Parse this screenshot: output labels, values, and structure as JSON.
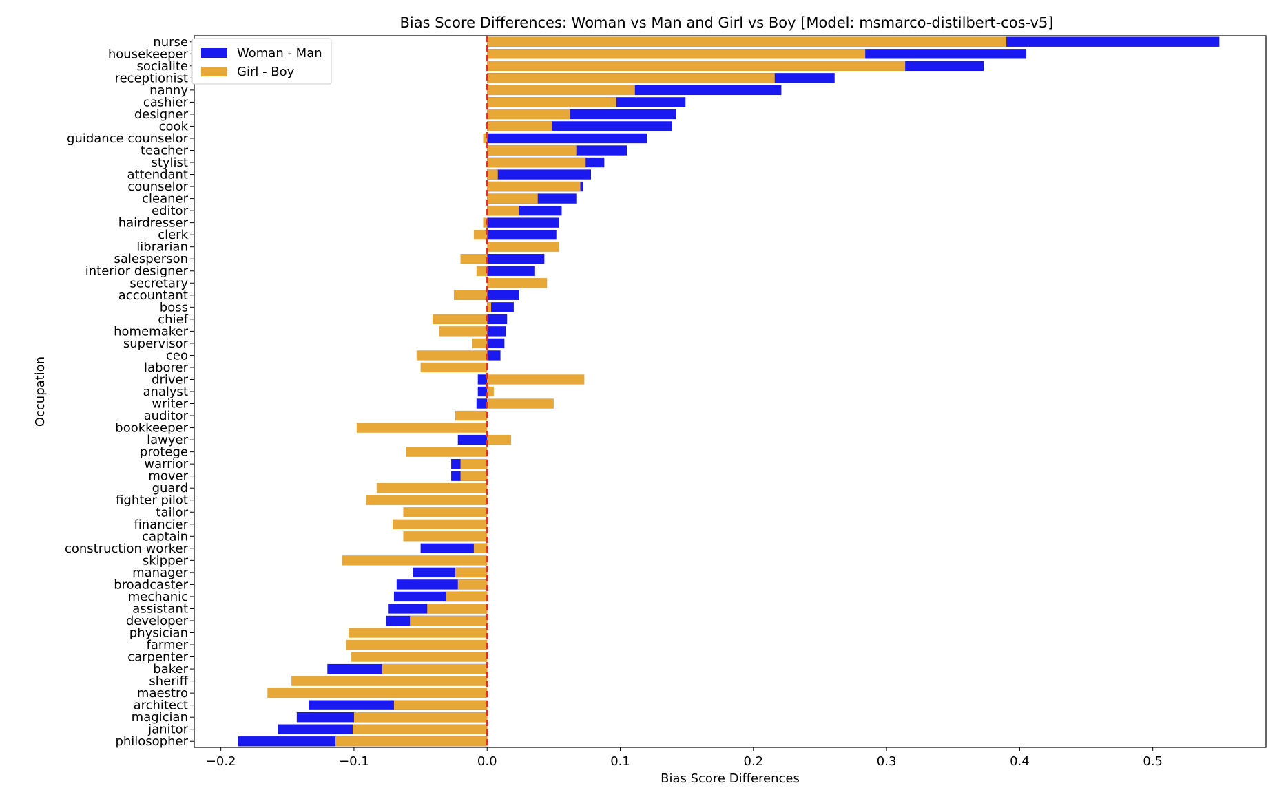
{
  "chart_data": {
    "type": "bar",
    "orientation": "horizontal",
    "title": "Bias Score Differences: Woman vs Man and Girl vs Boy [Model: msmarco-distilbert-cos-v5]",
    "xlabel": "Bias Score Differences",
    "ylabel": "Occupation",
    "xlim": [
      -0.22,
      0.585
    ],
    "xticks": [
      -0.2,
      -0.1,
      0.0,
      0.1,
      0.2,
      0.3,
      0.4,
      0.5
    ],
    "xtick_labels": [
      "−0.2",
      "−0.1",
      "0.0",
      "0.1",
      "0.2",
      "0.3",
      "0.4",
      "0.5"
    ],
    "reference_line": 0,
    "legend_position": "top-left",
    "categories": [
      "nurse",
      "housekeeper",
      "socialite",
      "receptionist",
      "nanny",
      "cashier",
      "designer",
      "cook",
      "guidance counselor",
      "teacher",
      "stylist",
      "attendant",
      "counselor",
      "cleaner",
      "editor",
      "hairdresser",
      "clerk",
      "librarian",
      "salesperson",
      "interior designer",
      "secretary",
      "accountant",
      "boss",
      "chief",
      "homemaker",
      "supervisor",
      "ceo",
      "laborer",
      "driver",
      "analyst",
      "writer",
      "auditor",
      "bookkeeper",
      "lawyer",
      "protege",
      "warrior",
      "mover",
      "guard",
      "fighter pilot",
      "tailor",
      "financier",
      "captain",
      "construction worker",
      "skipper",
      "manager",
      "broadcaster",
      "mechanic",
      "assistant",
      "developer",
      "physician",
      "farmer",
      "carpenter",
      "baker",
      "sheriff",
      "maestro",
      "architect",
      "magician",
      "janitor",
      "philosopher"
    ],
    "series": [
      {
        "name": "Woman - Man",
        "color": "#1a1af0",
        "values": [
          0.55,
          0.405,
          0.373,
          0.261,
          0.221,
          0.149,
          0.142,
          0.139,
          0.12,
          0.105,
          0.088,
          0.078,
          0.072,
          0.067,
          0.056,
          0.054,
          0.052,
          0.0,
          0.043,
          0.036,
          0.0,
          0.024,
          0.02,
          0.015,
          0.014,
          0.013,
          0.01,
          0.0,
          -0.007,
          -0.007,
          -0.008,
          0.0,
          0.0,
          -0.022,
          0.0,
          -0.027,
          -0.027,
          0.0,
          0.0,
          0.0,
          0.0,
          0.0,
          -0.05,
          0.0,
          -0.056,
          -0.068,
          -0.07,
          -0.074,
          -0.076,
          0.0,
          0.0,
          0.0,
          -0.12,
          0.0,
          0.0,
          -0.134,
          -0.143,
          -0.157,
          -0.187
        ]
      },
      {
        "name": "Girl - Boy",
        "color": "#e8a838",
        "values": [
          0.39,
          0.284,
          0.314,
          0.216,
          0.111,
          0.097,
          0.062,
          0.049,
          -0.003,
          0.067,
          0.074,
          0.008,
          0.07,
          0.038,
          0.024,
          -0.003,
          -0.01,
          0.054,
          -0.02,
          -0.008,
          0.045,
          -0.025,
          0.003,
          -0.041,
          -0.036,
          -0.011,
          -0.053,
          -0.05,
          0.073,
          0.005,
          0.05,
          -0.024,
          -0.098,
          0.018,
          -0.061,
          -0.02,
          -0.02,
          -0.083,
          -0.091,
          -0.063,
          -0.071,
          -0.063,
          -0.01,
          -0.109,
          -0.024,
          -0.022,
          -0.031,
          -0.045,
          -0.058,
          -0.104,
          -0.106,
          -0.102,
          -0.079,
          -0.147,
          -0.165,
          -0.07,
          -0.1,
          -0.101,
          -0.114
        ]
      }
    ]
  }
}
